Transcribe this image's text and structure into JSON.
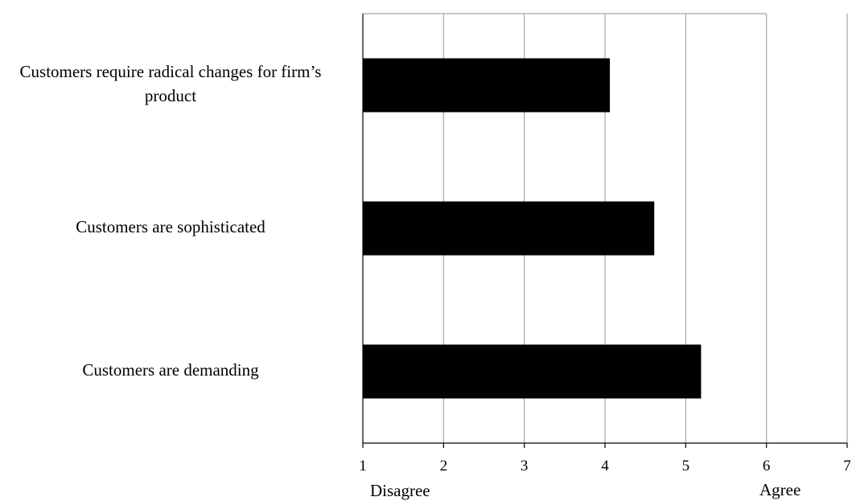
{
  "chart_data": {
    "type": "bar",
    "orientation": "horizontal",
    "categories": [
      "Customers require radical changes for firm’s product",
      "Customers are sophisticated",
      "Customers are demanding"
    ],
    "values": [
      4.06,
      4.61,
      5.19
    ],
    "xlim": [
      1,
      7
    ],
    "xticks": [
      1,
      2,
      3,
      4,
      5,
      6,
      7
    ],
    "grid": "vertical",
    "bar_color": "#000000",
    "gridline_color": "#a6a6a6",
    "scale_low_label": "Disagree",
    "scale_high_label": "Agree"
  }
}
